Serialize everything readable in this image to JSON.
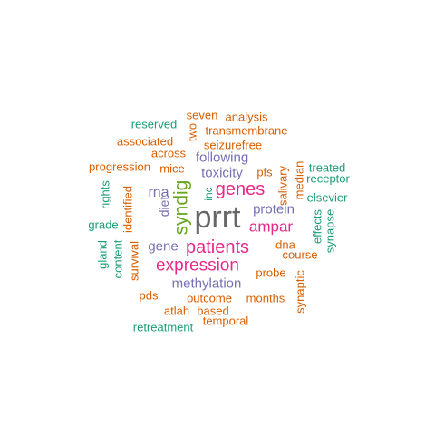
{
  "words": [
    {
      "text": "prrt",
      "color": "#666666"
    },
    {
      "text": "patients",
      "color": "#e7298a"
    },
    {
      "text": "syndig",
      "color": "#66a61e"
    },
    {
      "text": "genes",
      "color": "#e7298a"
    },
    {
      "text": "expression",
      "color": "#e7298a"
    },
    {
      "text": "ampar",
      "color": "#e7298a"
    },
    {
      "text": "rna",
      "color": "#7570b3"
    },
    {
      "text": "protein",
      "color": "#7570b3"
    },
    {
      "text": "gene",
      "color": "#7570b3"
    },
    {
      "text": "methylation",
      "color": "#7570b3"
    },
    {
      "text": "following",
      "color": "#7570b3"
    },
    {
      "text": "toxicity",
      "color": "#7570b3"
    },
    {
      "text": "diet",
      "color": "#7570b3"
    },
    {
      "text": "inc",
      "color": "#1b9e77"
    },
    {
      "text": "salivary",
      "color": "#d95f02"
    },
    {
      "text": "pfs",
      "color": "#d95f02"
    },
    {
      "text": "seizurefree",
      "color": "#d95f02"
    },
    {
      "text": "mice",
      "color": "#d95f02"
    },
    {
      "text": "across",
      "color": "#d95f02"
    },
    {
      "text": "transmembrane",
      "color": "#d95f02"
    },
    {
      "text": "seven",
      "color": "#d95f02"
    },
    {
      "text": "analysis",
      "color": "#d95f02"
    },
    {
      "text": "two",
      "color": "#d95f02"
    },
    {
      "text": "associated",
      "color": "#d95f02"
    },
    {
      "text": "progression",
      "color": "#d95f02"
    },
    {
      "text": "reserved",
      "color": "#1b9e77"
    },
    {
      "text": "median",
      "color": "#d95f02"
    },
    {
      "text": "treated",
      "color": "#1b9e77"
    },
    {
      "text": "receptor",
      "color": "#1b9e77"
    },
    {
      "text": "elsevier",
      "color": "#1b9e77"
    },
    {
      "text": "effects",
      "color": "#1b9e77"
    },
    {
      "text": "synapse",
      "color": "#1b9e77"
    },
    {
      "text": "dna",
      "color": "#d95f02"
    },
    {
      "text": "course",
      "color": "#d95f02"
    },
    {
      "text": "probe",
      "color": "#d95f02"
    },
    {
      "text": "synaptic",
      "color": "#d95f02"
    },
    {
      "text": "months",
      "color": "#d95f02"
    },
    {
      "text": "outcome",
      "color": "#d95f02"
    },
    {
      "text": "based",
      "color": "#d95f02"
    },
    {
      "text": "temporal",
      "color": "#d95f02"
    },
    {
      "text": "atlah",
      "color": "#d95f02"
    },
    {
      "text": "pds",
      "color": "#d95f02"
    },
    {
      "text": "retreatment",
      "color": "#1b9e77"
    },
    {
      "text": "survival",
      "color": "#d95f02"
    },
    {
      "text": "content",
      "color": "#1b9e77"
    },
    {
      "text": "gland",
      "color": "#1b9e77"
    },
    {
      "text": "grade",
      "color": "#1b9e77"
    },
    {
      "text": "identified",
      "color": "#d95f02"
    },
    {
      "text": "rights",
      "color": "#1b9e77"
    }
  ]
}
